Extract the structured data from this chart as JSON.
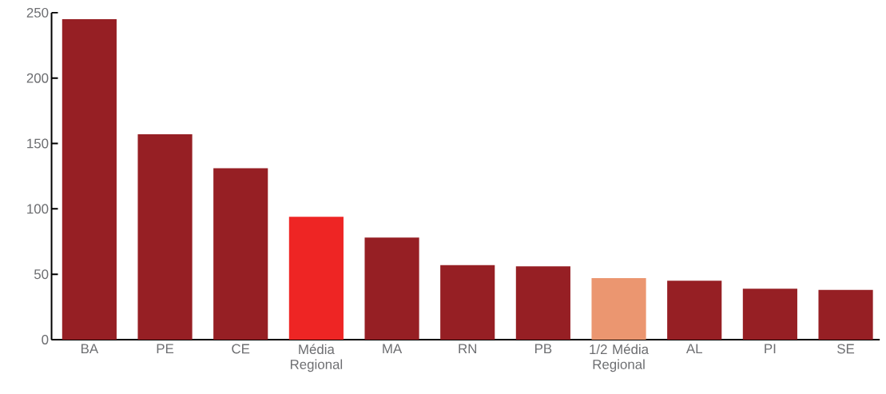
{
  "chart_data": {
    "type": "bar",
    "categories": [
      "BA",
      "PE",
      "CE",
      "Média Regional",
      "MA",
      "RN",
      "PB",
      "1/2 Média Regional",
      "AL",
      "PI",
      "SE"
    ],
    "values": [
      245,
      157,
      131,
      94,
      78,
      57,
      56,
      47,
      45,
      39,
      38
    ],
    "colors": [
      "#961f24",
      "#961f24",
      "#961f24",
      "#ee2524",
      "#961f24",
      "#961f24",
      "#961f24",
      "#eb9670",
      "#961f24",
      "#961f24",
      "#961f24"
    ],
    "ylim": [
      0,
      250
    ],
    "yticks": [
      0,
      50,
      100,
      150,
      200,
      250
    ]
  }
}
